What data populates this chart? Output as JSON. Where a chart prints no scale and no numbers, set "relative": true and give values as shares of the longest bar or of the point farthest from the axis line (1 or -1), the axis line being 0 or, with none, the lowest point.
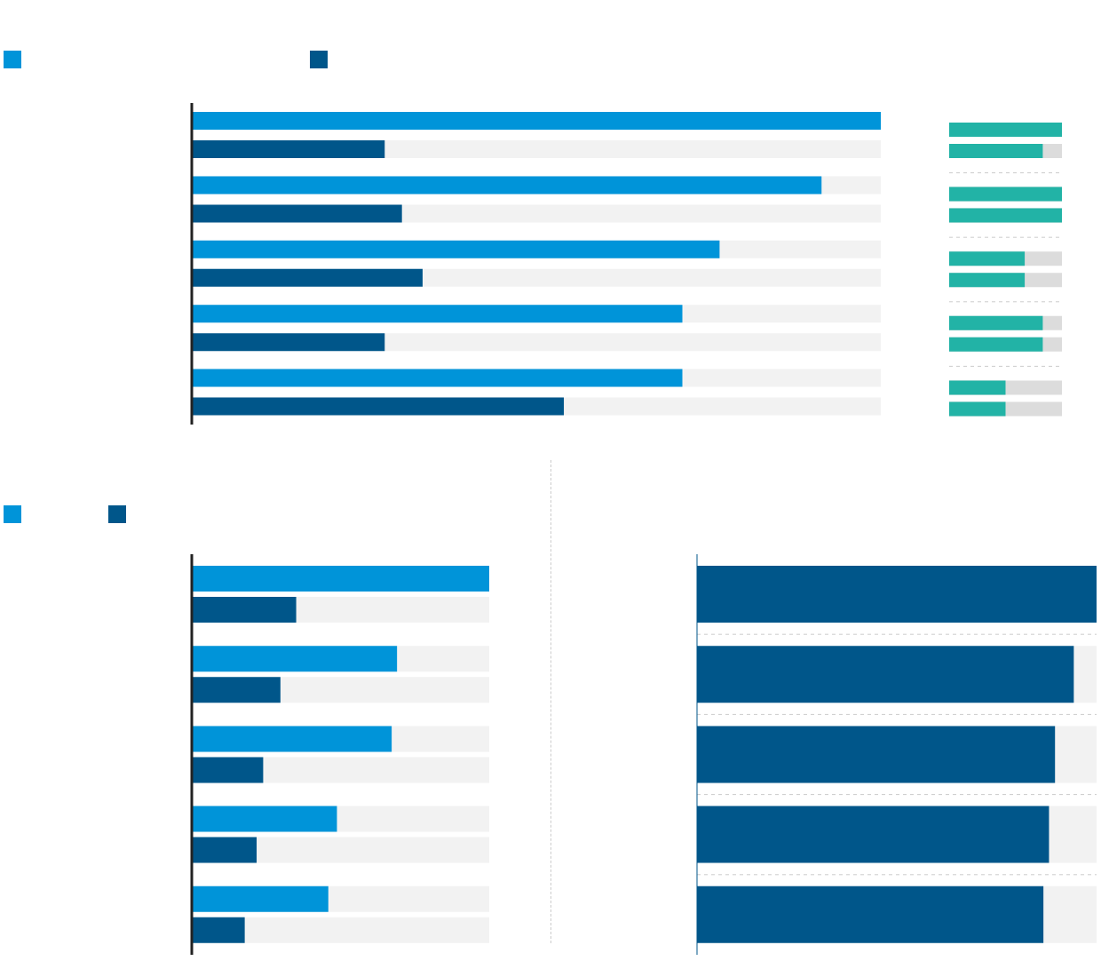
{
  "chart_data": [
    {
      "type": "bar",
      "orientation": "horizontal",
      "relative": true,
      "categories": [
        null,
        null,
        null,
        null,
        null
      ],
      "series": [
        {
          "color": "#0094d9",
          "values": [
            1,
            0.914,
            0.766,
            0.712,
            0.712
          ]
        },
        {
          "color": "#00568a",
          "values": [
            0.28,
            0.305,
            0.335,
            0.28,
            0.54
          ]
        }
      ]
    },
    {
      "type": "bar",
      "orientation": "horizontal",
      "relative": true,
      "categories": [
        null,
        null,
        null,
        null,
        null
      ],
      "series": [
        {
          "color": "#22b3a6",
          "values": [
            1,
            1,
            0.67,
            0.83,
            0.5
          ]
        },
        {
          "color": "#22b3a6",
          "values": [
            0.83,
            1,
            0.67,
            0.83,
            0.5
          ]
        }
      ],
      "grid": "y"
    },
    {
      "type": "bar",
      "orientation": "horizontal",
      "relative": true,
      "categories": [
        null,
        null,
        null,
        null,
        null
      ],
      "series": [
        {
          "color": "#0094d9",
          "values": [
            1,
            0.69,
            0.672,
            0.488,
            0.459
          ]
        },
        {
          "color": "#00568a",
          "values": [
            0.351,
            0.298,
            0.24,
            0.218,
            0.178
          ]
        }
      ]
    },
    {
      "type": "bar",
      "orientation": "horizontal",
      "relative": true,
      "categories": [
        null,
        null,
        null,
        null,
        null
      ],
      "series": [
        {
          "color": "#00568a",
          "values": [
            1,
            0.943,
            0.896,
            0.881,
            0.867
          ]
        }
      ],
      "grid": "y"
    }
  ]
}
